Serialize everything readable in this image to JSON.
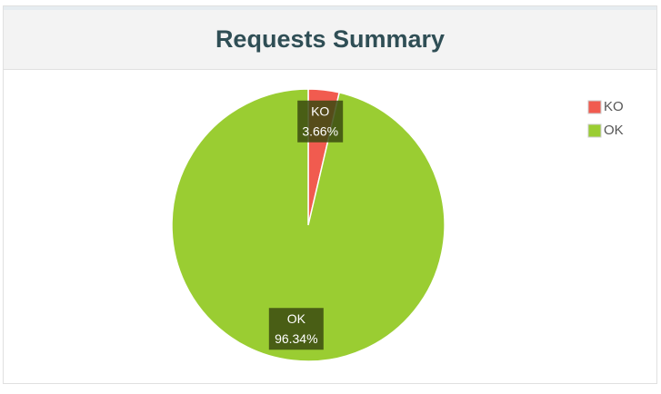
{
  "chart_data": {
    "type": "pie",
    "title": "Requests Summary",
    "categories": [
      "KO",
      "OK"
    ],
    "values": [
      3.66,
      96.34
    ],
    "value_labels": [
      "3.66%",
      "96.34%"
    ],
    "colors": [
      "#f15b4f",
      "#9acd32"
    ],
    "legend": "top-right"
  }
}
